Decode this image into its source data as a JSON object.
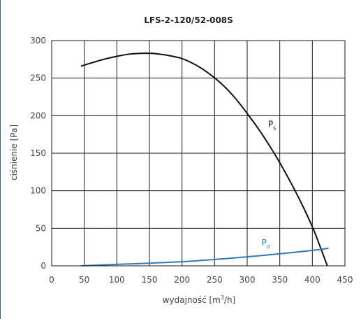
{
  "chart_data": {
    "type": "line",
    "title": "LFS-2-120/52-008S",
    "xlabel_prefix": "wydajność [m",
    "xlabel_sup": "3",
    "xlabel_suffix": "/h]",
    "ylabel": "ciśnienie [Pa]",
    "xlim": [
      0,
      450
    ],
    "ylim": [
      0,
      300
    ],
    "xticks": [
      0,
      50,
      100,
      150,
      200,
      250,
      300,
      350,
      400,
      450
    ],
    "yticks": [
      0,
      50,
      100,
      150,
      200,
      250,
      300
    ],
    "grid": true,
    "series": [
      {
        "label_main": "P",
        "label_sub": "s",
        "label_at": [
          332,
          185
        ],
        "color": "#111111",
        "x": [
          45,
          60,
          80,
          100,
          120,
          140,
          150,
          160,
          180,
          200,
          220,
          240,
          260,
          280,
          300,
          320,
          340,
          360,
          380,
          400,
          410,
          420,
          423
        ],
        "y": [
          266,
          270,
          275,
          279,
          282,
          283,
          283,
          282.5,
          280,
          276,
          268,
          257,
          243,
          225,
          203,
          179,
          152,
          122,
          89,
          52,
          30,
          7,
          0
        ]
      },
      {
        "label_main": "P",
        "label_sub": "d",
        "label_at": [
          322,
          27
        ],
        "color": "#2b7bb9",
        "x": [
          45,
          100,
          150,
          200,
          250,
          300,
          350,
          400,
          425
        ],
        "y": [
          0,
          2,
          3.5,
          5.5,
          8.5,
          12,
          16,
          20.5,
          23.5
        ]
      }
    ]
  }
}
